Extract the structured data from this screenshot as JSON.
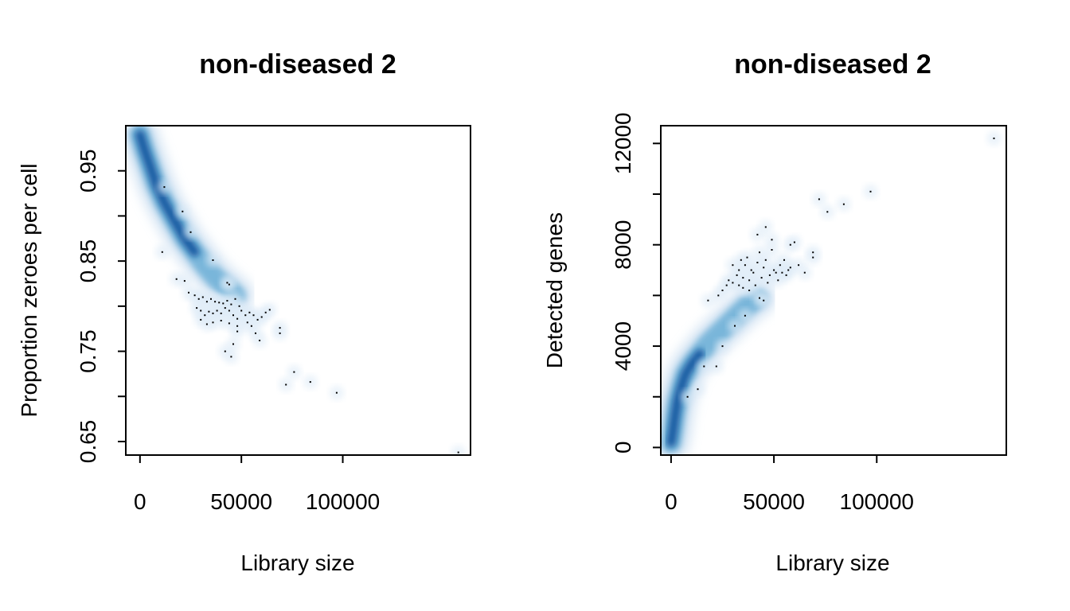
{
  "chart_data": [
    {
      "type": "scatter",
      "style": "smoothScatter",
      "title": "non-diseased 2",
      "xlabel": "Library size",
      "ylabel": "Proportion zeroes per cell",
      "xlim": [
        -7000,
        163000
      ],
      "ylim": [
        0.635,
        1.0
      ],
      "x_ticks": [
        0,
        50000,
        100000
      ],
      "x_tick_labels": [
        "0",
        "50000",
        "100000"
      ],
      "y_ticks": [
        0.65,
        0.7,
        0.75,
        0.8,
        0.85,
        0.9,
        0.95
      ],
      "y_tick_labels": [
        "0.65",
        "",
        "0.75",
        "",
        "0.85",
        "",
        "0.95"
      ],
      "density_trend": [
        [
          0,
          0.99
        ],
        [
          2000,
          0.975
        ],
        [
          5000,
          0.955
        ],
        [
          8000,
          0.935
        ],
        [
          12000,
          0.915
        ],
        [
          17000,
          0.895
        ],
        [
          22000,
          0.875
        ],
        [
          27000,
          0.86
        ],
        [
          32000,
          0.845
        ],
        [
          37000,
          0.832
        ],
        [
          42000,
          0.822
        ],
        [
          47000,
          0.812
        ]
      ],
      "outliers": [
        [
          12000,
          0.932
        ],
        [
          21000,
          0.905
        ],
        [
          25000,
          0.882
        ],
        [
          11000,
          0.86
        ],
        [
          36000,
          0.851
        ],
        [
          18000,
          0.83
        ],
        [
          22000,
          0.828
        ],
        [
          24000,
          0.815
        ],
        [
          27000,
          0.812
        ],
        [
          29000,
          0.808
        ],
        [
          31000,
          0.81
        ],
        [
          33000,
          0.805
        ],
        [
          35000,
          0.808
        ],
        [
          37000,
          0.805
        ],
        [
          39000,
          0.804
        ],
        [
          41000,
          0.803
        ],
        [
          43000,
          0.806
        ],
        [
          45000,
          0.802
        ],
        [
          47000,
          0.808
        ],
        [
          49000,
          0.8
        ],
        [
          28000,
          0.798
        ],
        [
          30000,
          0.795
        ],
        [
          32000,
          0.79
        ],
        [
          34000,
          0.794
        ],
        [
          36000,
          0.792
        ],
        [
          38000,
          0.795
        ],
        [
          40000,
          0.792
        ],
        [
          42000,
          0.798
        ],
        [
          44000,
          0.795
        ],
        [
          46000,
          0.79
        ],
        [
          48000,
          0.786
        ],
        [
          50000,
          0.795
        ],
        [
          52000,
          0.79
        ],
        [
          54000,
          0.793
        ],
        [
          56000,
          0.79
        ],
        [
          58000,
          0.785
        ],
        [
          60000,
          0.788
        ],
        [
          62000,
          0.793
        ],
        [
          64000,
          0.796
        ],
        [
          30000,
          0.785
        ],
        [
          33000,
          0.78
        ],
        [
          36000,
          0.782
        ],
        [
          40000,
          0.784
        ],
        [
          44000,
          0.781
        ],
        [
          48000,
          0.778
        ],
        [
          53000,
          0.782
        ],
        [
          55000,
          0.778
        ],
        [
          57000,
          0.77
        ],
        [
          59000,
          0.762
        ],
        [
          43000,
          0.826
        ],
        [
          44000,
          0.824
        ],
        [
          48000,
          0.772
        ],
        [
          46000,
          0.758
        ],
        [
          42000,
          0.75
        ],
        [
          45000,
          0.744
        ],
        [
          69000,
          0.776
        ],
        [
          69000,
          0.77
        ],
        [
          72000,
          0.713
        ],
        [
          76000,
          0.727
        ],
        [
          84000,
          0.716
        ],
        [
          97000,
          0.704
        ],
        [
          157000,
          0.638
        ]
      ]
    },
    {
      "type": "scatter",
      "style": "smoothScatter",
      "title": "non-diseased 2",
      "xlabel": "Library size",
      "ylabel": "Detected genes",
      "xlim": [
        -5000,
        163000
      ],
      "ylim": [
        -300,
        12700
      ],
      "x_ticks": [
        0,
        50000,
        100000
      ],
      "x_tick_labels": [
        "0",
        "50000",
        "100000"
      ],
      "y_ticks": [
        0,
        2000,
        4000,
        6000,
        8000,
        10000,
        12000
      ],
      "y_tick_labels": [
        "0",
        "",
        "4000",
        "",
        "8000",
        "",
        "12000"
      ],
      "density_trend": [
        [
          0,
          200
        ],
        [
          1000,
          700
        ],
        [
          2000,
          1300
        ],
        [
          3000,
          1800
        ],
        [
          5000,
          2400
        ],
        [
          7000,
          2900
        ],
        [
          10000,
          3300
        ],
        [
          14000,
          3700
        ],
        [
          18000,
          4100
        ],
        [
          23000,
          4500
        ],
        [
          28000,
          4900
        ],
        [
          33000,
          5300
        ],
        [
          37000,
          5600
        ],
        [
          42000,
          5900
        ]
      ],
      "outliers": [
        [
          8000,
          2000
        ],
        [
          13000,
          2300
        ],
        [
          16000,
          3200
        ],
        [
          22000,
          3200
        ],
        [
          25000,
          4000
        ],
        [
          31000,
          4800
        ],
        [
          36000,
          5200
        ],
        [
          18000,
          5800
        ],
        [
          23000,
          6000
        ],
        [
          25000,
          6200
        ],
        [
          27000,
          6400
        ],
        [
          28000,
          6600
        ],
        [
          30000,
          6500
        ],
        [
          32000,
          6800
        ],
        [
          33000,
          7000
        ],
        [
          35000,
          6700
        ],
        [
          36000,
          7200
        ],
        [
          38000,
          6600
        ],
        [
          40000,
          6900
        ],
        [
          41000,
          6400
        ],
        [
          42000,
          7300
        ],
        [
          44000,
          6700
        ],
        [
          45000,
          7100
        ],
        [
          47000,
          6500
        ],
        [
          48000,
          6800
        ],
        [
          50000,
          7000
        ],
        [
          52000,
          6600
        ],
        [
          53000,
          7200
        ],
        [
          54000,
          6900
        ],
        [
          55000,
          7400
        ],
        [
          56000,
          6800
        ],
        [
          57000,
          7000
        ],
        [
          58000,
          7100
        ],
        [
          30000,
          7200
        ],
        [
          34000,
          7400
        ],
        [
          37000,
          7500
        ],
        [
          39000,
          7000
        ],
        [
          43000,
          7700
        ],
        [
          46000,
          7400
        ],
        [
          49000,
          7800
        ],
        [
          51000,
          6900
        ],
        [
          43000,
          5900
        ],
        [
          45000,
          5800
        ],
        [
          33000,
          6400
        ],
        [
          35000,
          6300
        ],
        [
          38000,
          6200
        ],
        [
          42000,
          8400
        ],
        [
          46000,
          8700
        ],
        [
          49000,
          8200
        ],
        [
          58000,
          8000
        ],
        [
          60000,
          8100
        ],
        [
          62000,
          7200
        ],
        [
          65000,
          6900
        ],
        [
          69000,
          7500
        ],
        [
          69000,
          7700
        ],
        [
          72000,
          9800
        ],
        [
          76000,
          9300
        ],
        [
          84000,
          9600
        ],
        [
          97000,
          10100
        ],
        [
          157000,
          12200
        ]
      ]
    }
  ]
}
